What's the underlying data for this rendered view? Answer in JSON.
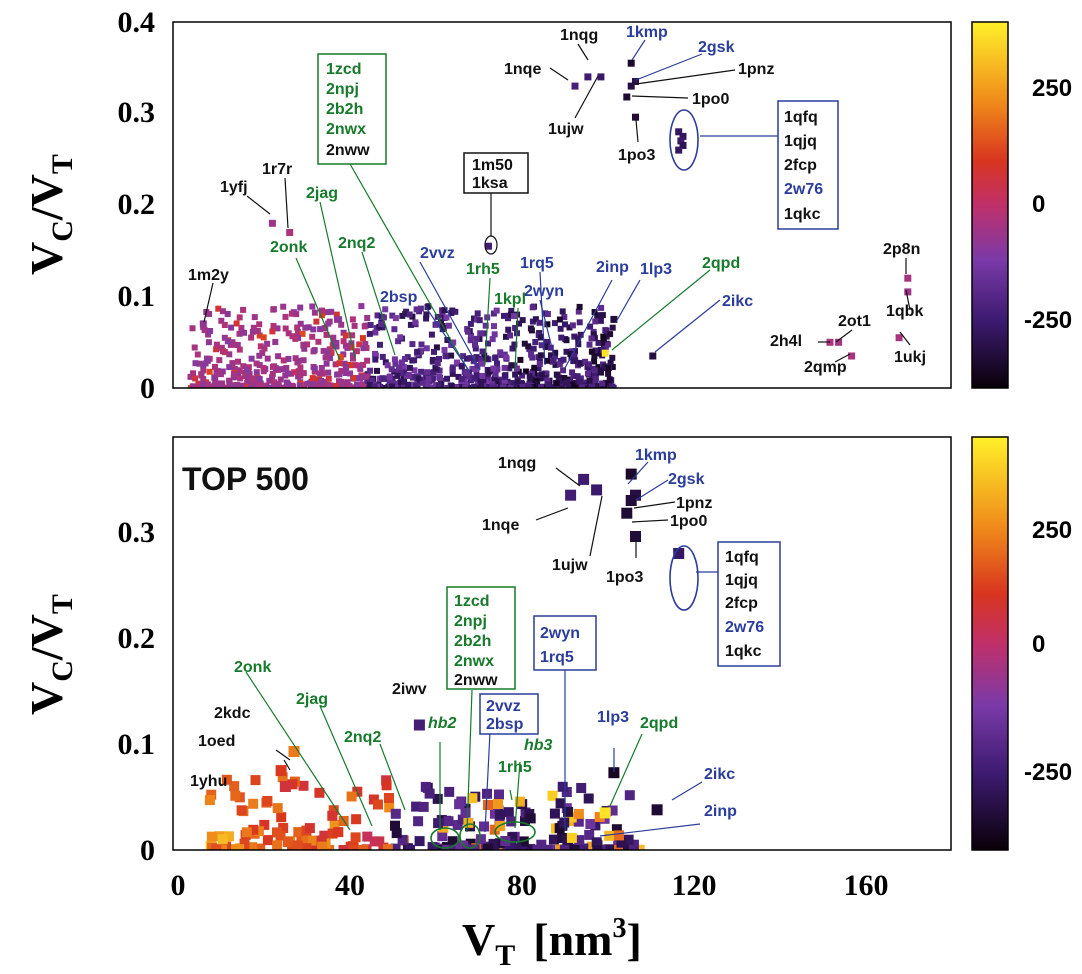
{
  "chart_data": [
    {
      "type": "scatter",
      "title": "",
      "xlabel": "V_T [nm^3]",
      "ylabel": "V_C/V_T",
      "xlim": [
        0,
        180
      ],
      "ylim": [
        0,
        0.4
      ],
      "xticks": [
        0,
        40,
        80,
        120,
        160
      ],
      "yticks": [
        0,
        0.1,
        0.2,
        0.3,
        0.4
      ],
      "colorbar": {
        "range": [
          -400,
          400
        ],
        "ticks": [
          250,
          0,
          -250
        ]
      },
      "points": [
        {
          "id": "1nqg",
          "x": 96,
          "y": 0.34,
          "c": -250
        },
        {
          "id": "1nqe",
          "x": 93,
          "y": 0.33,
          "c": -230
        },
        {
          "id": "1ujw",
          "x": 99,
          "y": 0.34,
          "c": -260
        },
        {
          "id": "1kmp",
          "x": 106,
          "y": 0.355,
          "c": -350
        },
        {
          "id": "2gsk",
          "x": 107,
          "y": 0.335,
          "c": -300
        },
        {
          "id": "1pnz",
          "x": 106,
          "y": 0.33,
          "c": -320
        },
        {
          "id": "1po0",
          "x": 105,
          "y": 0.318,
          "c": -340
        },
        {
          "id": "1po3",
          "x": 107,
          "y": 0.296,
          "c": -330
        },
        {
          "id": "1qfq",
          "x": 117,
          "y": 0.28,
          "c": -270
        },
        {
          "id": "1qjq",
          "x": 118,
          "y": 0.275,
          "c": -280
        },
        {
          "id": "2fcp",
          "x": 117.5,
          "y": 0.27,
          "c": -260
        },
        {
          "id": "2w76",
          "x": 118,
          "y": 0.265,
          "c": -290
        },
        {
          "id": "1qkc",
          "x": 117,
          "y": 0.26,
          "c": -270
        },
        {
          "id": "1m50",
          "x": 73,
          "y": 0.155,
          "c": -240
        },
        {
          "id": "1yfj",
          "x": 23,
          "y": 0.18,
          "c": -60
        },
        {
          "id": "1r7r",
          "x": 27,
          "y": 0.17,
          "c": -30
        },
        {
          "id": "1m2y",
          "x": 7,
          "y": 0.07,
          "c": -80
        },
        {
          "id": "2p8n",
          "x": 170,
          "y": 0.12,
          "c": -40
        },
        {
          "id": "1qbk",
          "x": 170,
          "y": 0.105,
          "c": -60
        },
        {
          "id": "1ukj",
          "x": 168,
          "y": 0.055,
          "c": -40
        },
        {
          "id": "2ot1",
          "x": 154,
          "y": 0.05,
          "c": -50
        },
        {
          "id": "2h4l",
          "x": 152,
          "y": 0.05,
          "c": -30
        },
        {
          "id": "2qmp",
          "x": 157,
          "y": 0.035,
          "c": -40
        },
        {
          "id": "1lp3",
          "x": 102,
          "y": 0.075,
          "c": -330
        },
        {
          "id": "2qpd",
          "x": 100,
          "y": 0.038,
          "c": 380
        },
        {
          "id": "2ikc",
          "x": 111,
          "y": 0.035,
          "c": -320
        }
      ],
      "annotations": [
        "1nqg",
        "1kmp",
        "2gsk",
        "1nqe",
        "1pnz",
        "1po0",
        "1ujw",
        "1po3",
        "1m50",
        "1ksa",
        "1yfj",
        "1r7r",
        "2jag",
        "2onk",
        "2nq2",
        "1m2y",
        "2vvz",
        "1rh5",
        "1rq5",
        "2inp",
        "1lp3",
        "2qpd",
        "2bsp",
        "1kpl",
        "2wyn",
        "2ikc",
        "2p8n",
        "1qbk",
        "2ot1",
        "2h4l",
        "2qmp",
        "1ukj"
      ]
    },
    {
      "type": "scatter",
      "title": "TOP 500",
      "xlabel": "V_T [nm^3]",
      "ylabel": "V_C/V_T",
      "xlim": [
        0,
        180
      ],
      "ylim": [
        0,
        0.39
      ],
      "xticks": [
        0,
        40,
        80,
        120,
        160
      ],
      "yticks": [
        0,
        0.1,
        0.2,
        0.3
      ],
      "colorbar": {
        "range": [
          -400,
          400
        ],
        "ticks": [
          250,
          0,
          -250
        ]
      },
      "points": [
        {
          "id": "1nqg",
          "x": 95,
          "y": 0.35,
          "c": -250
        },
        {
          "id": "1nqe",
          "x": 92,
          "y": 0.335,
          "c": -240
        },
        {
          "id": "1ujw",
          "x": 98,
          "y": 0.34,
          "c": -260
        },
        {
          "id": "1kmp",
          "x": 106,
          "y": 0.355,
          "c": -350
        },
        {
          "id": "2gsk",
          "x": 107,
          "y": 0.335,
          "c": -320
        },
        {
          "id": "1pnz",
          "x": 106,
          "y": 0.33,
          "c": -330
        },
        {
          "id": "1po0",
          "x": 105,
          "y": 0.318,
          "c": -340
        },
        {
          "id": "1po3",
          "x": 107,
          "y": 0.296,
          "c": -330
        },
        {
          "id": "1qfq",
          "x": 117,
          "y": 0.28,
          "c": -270
        },
        {
          "id": "2iwv",
          "x": 57,
          "y": 0.118,
          "c": -240
        },
        {
          "id": "2kdc",
          "x": 28,
          "y": 0.093,
          "c": 200
        },
        {
          "id": "1oed",
          "x": 25,
          "y": 0.075,
          "c": 100
        },
        {
          "id": "1yhu",
          "x": 26,
          "y": 0.06,
          "c": 60
        },
        {
          "id": "1lp3",
          "x": 102,
          "y": 0.073,
          "c": -360
        },
        {
          "id": "2qpd",
          "x": 100,
          "y": 0.035,
          "c": 380
        },
        {
          "id": "2ikc",
          "x": 112,
          "y": 0.038,
          "c": -340
        }
      ],
      "annotations": [
        "1nqg",
        "1kmp",
        "2gsk",
        "1pnz",
        "1nqe",
        "1po0",
        "1ujw",
        "1po3",
        "2onk",
        "2jag",
        "2iwv",
        "2kdc",
        "1oed",
        "1yhu",
        "2nq2",
        "hb2",
        "hb3",
        "1rh5",
        "1lp3",
        "2qpd",
        "2ikc",
        "2inp"
      ]
    }
  ],
  "ui": {
    "panel1": {
      "y_axis_label": "V",
      "y_axis_sub1": "C",
      "y_axis_div": "/V",
      "y_axis_sub2": "T",
      "x_tick_labels": [
        "0",
        "40",
        "80",
        "120",
        "160"
      ],
      "y_tick_labels": [
        "0",
        "0.1",
        "0.2",
        "0.3",
        "0.4"
      ],
      "cb_tick_labels": [
        "250",
        "0",
        "-250"
      ],
      "labels_black": [
        "1nqg",
        "1nqe",
        "1pnz",
        "1po0",
        "1ujw",
        "1po3",
        "1yfj",
        "1r7r",
        "1m2y",
        "2p8n",
        "1qbk",
        "2ot1",
        "2h4l",
        "2qmp",
        "1ukj"
      ],
      "labels_blue": [
        "1kmp",
        "2gsk",
        "2vvz",
        "2bsp",
        "1rq5",
        "2wyn",
        "2inp",
        "1lp3",
        "2ikc"
      ],
      "labels_green": [
        "2jag",
        "2onk",
        "2nq2",
        "1rh5",
        "1kpl",
        "2qpd"
      ],
      "box_green": [
        "1zcd",
        "2npj",
        "2b2h",
        "2nwx",
        "2nww"
      ],
      "box_m50": [
        "1m50",
        "1ksa"
      ],
      "box_qfq": [
        "1qfq",
        "1qjq",
        "2fcp",
        "2w76",
        "1qkc"
      ]
    },
    "panel2": {
      "title": "TOP 500",
      "y_axis_label": "V",
      "y_axis_sub1": "C",
      "y_axis_div": "/V",
      "y_axis_sub2": "T",
      "x_tick_labels": [
        "0",
        "40",
        "80",
        "120",
        "160"
      ],
      "y_tick_labels": [
        "0",
        "0.1",
        "0.2",
        "0.3"
      ],
      "cb_tick_labels": [
        "250",
        "0",
        "-250"
      ],
      "x_axis_label": "V",
      "x_axis_sub": "T",
      "x_axis_unit": "[nm",
      "x_axis_exp": "3",
      "x_axis_close": "]",
      "labels_black": [
        "1nqg",
        "1nqe",
        "1pnz",
        "1po0",
        "1ujw",
        "1po3",
        "2iwv",
        "2kdc",
        "1oed",
        "1yhu"
      ],
      "labels_blue": [
        "1kmp",
        "2gsk",
        "1lp3",
        "2ikc",
        "2inp"
      ],
      "labels_green": [
        "2onk",
        "2jag",
        "2nq2",
        "hb2",
        "hb3",
        "1rh5",
        "2qpd"
      ],
      "box_green": [
        "1zcd",
        "2npj",
        "2b2h",
        "2nwx",
        "2nww"
      ],
      "box_wyn": [
        "2wyn",
        "1rq5"
      ],
      "box_vvz": [
        "2vvz",
        "2bsp"
      ],
      "box_qfq": [
        "1qfq",
        "1qjq",
        "2fcp",
        "2w76",
        "1qkc"
      ]
    },
    "colors": {
      "black_label": "#111111",
      "blue_label": "#2b3d9b",
      "green_label": "#177a2c"
    }
  }
}
